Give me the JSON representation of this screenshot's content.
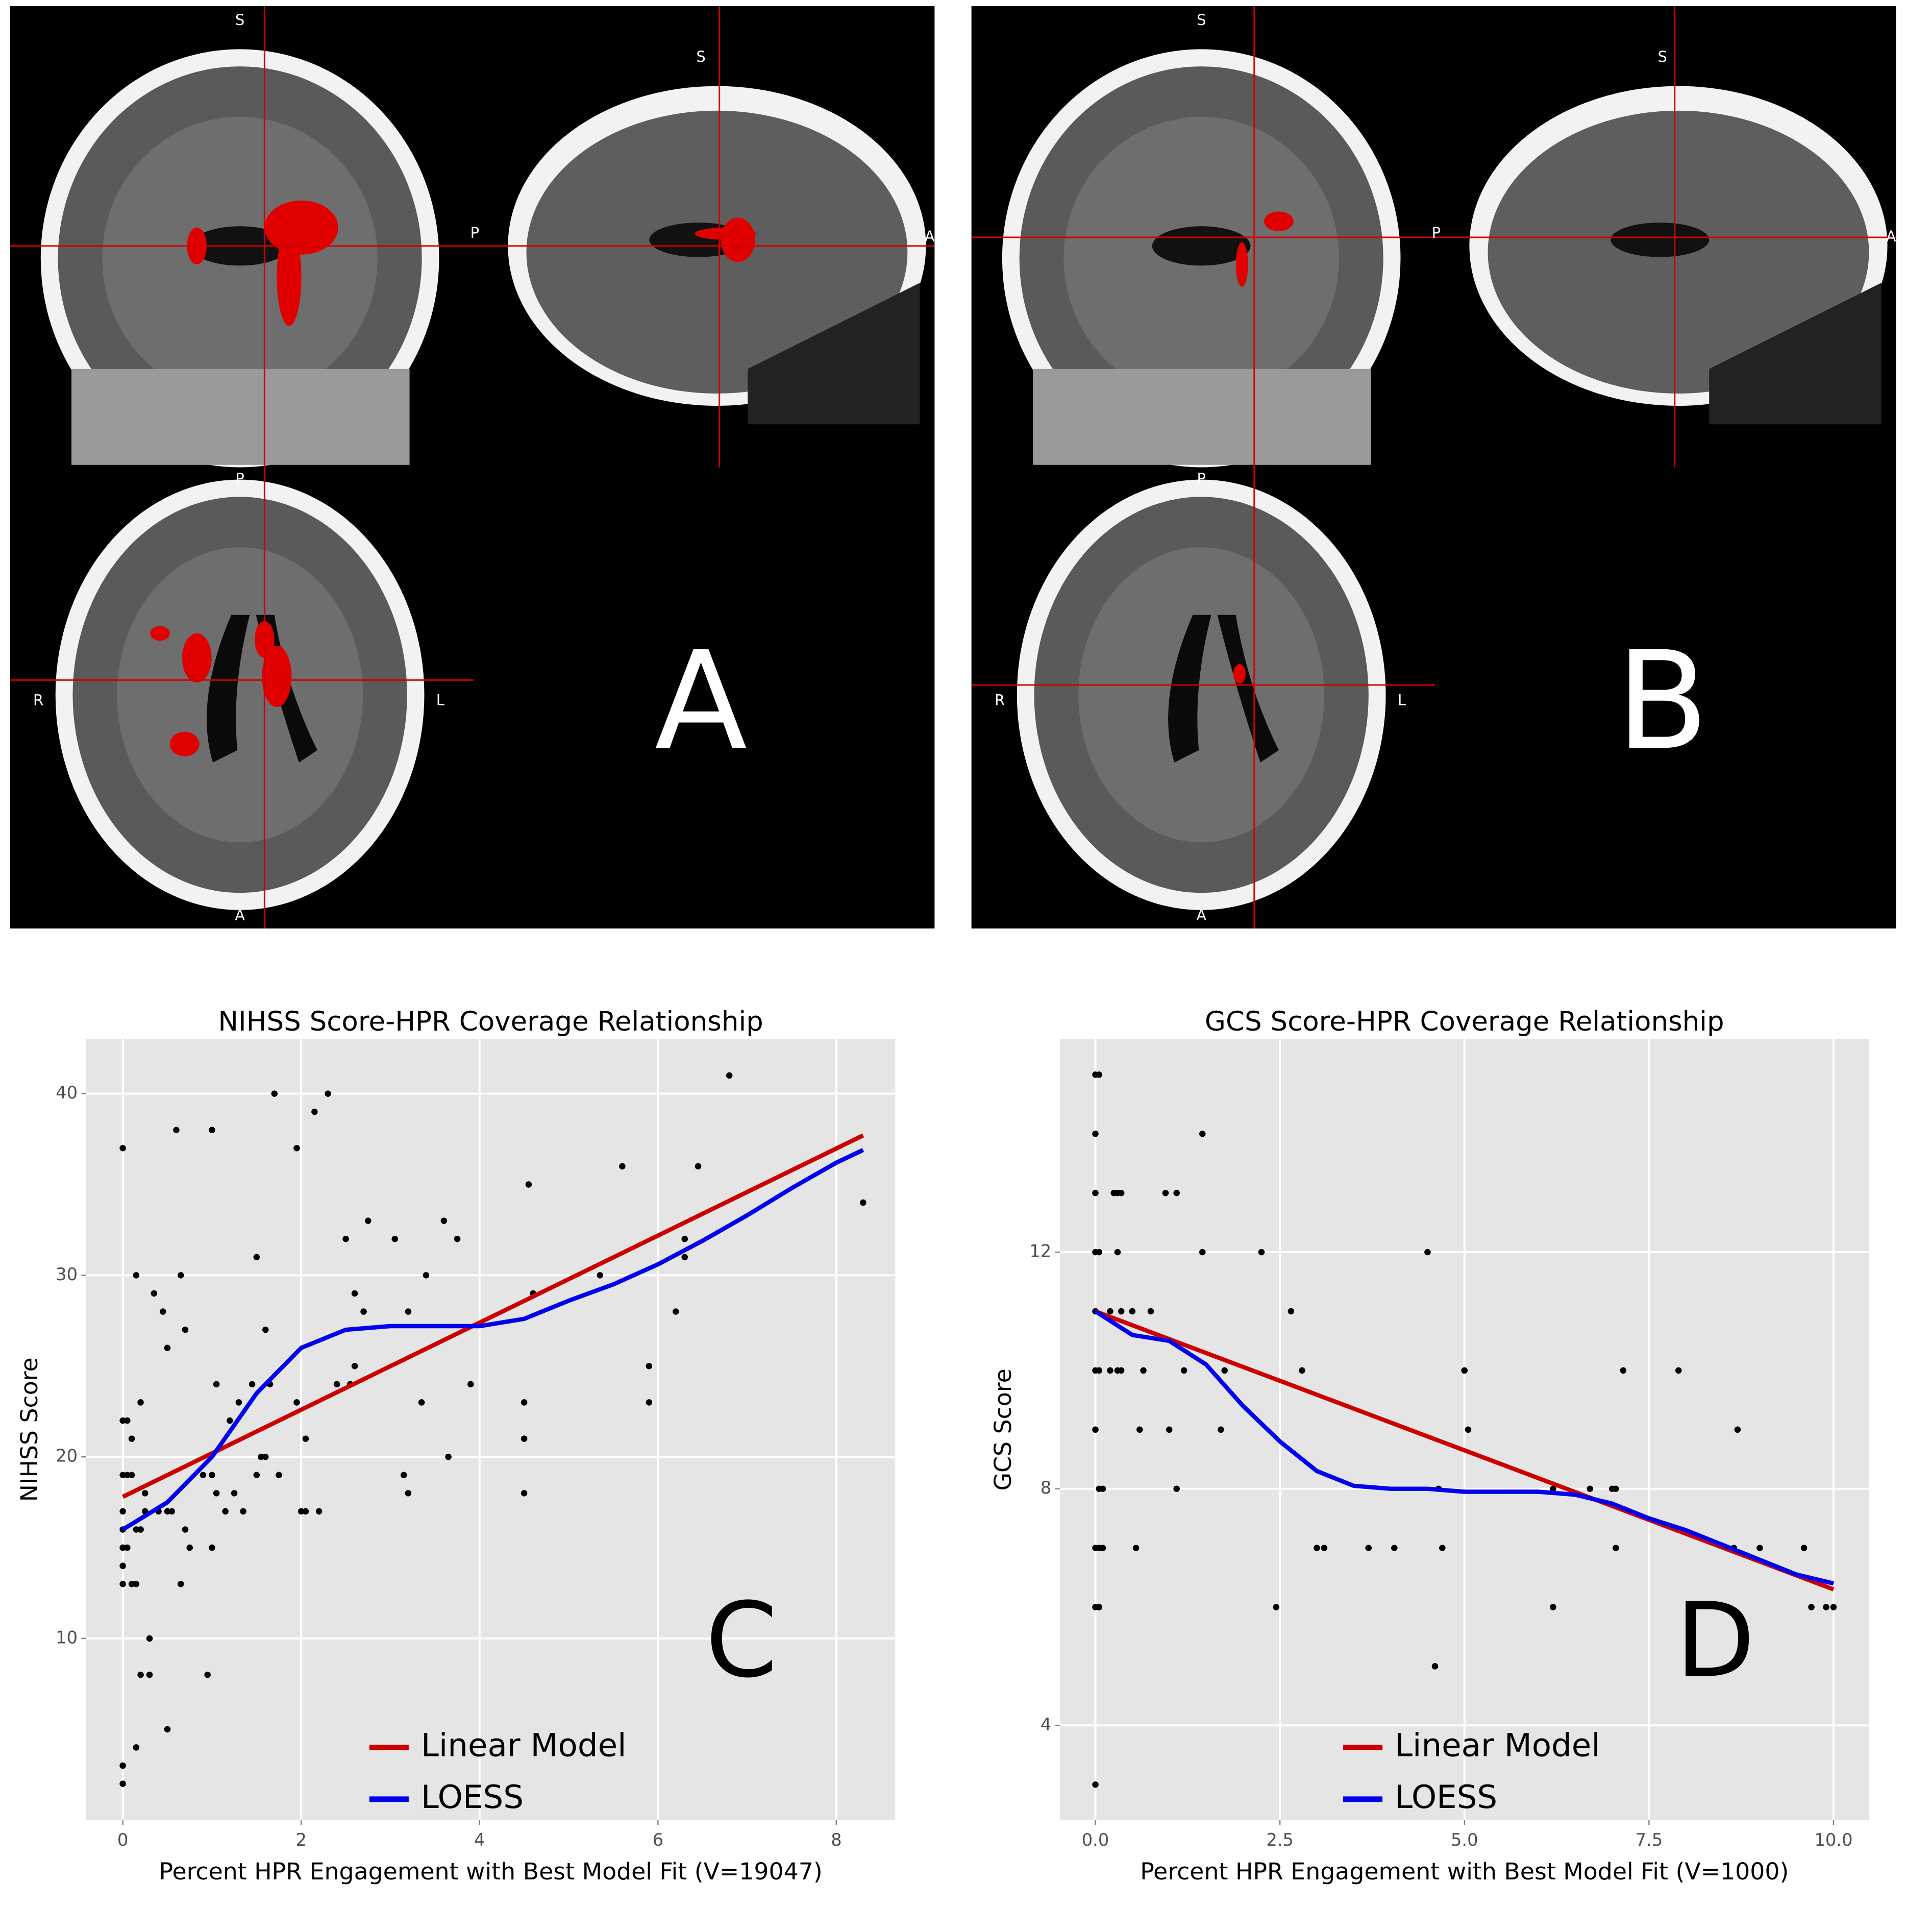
{
  "panels": [
    {
      "letter": "A",
      "orientation": {
        "coronal_top": "S",
        "sagittal_top": "S",
        "sagittal_left": "P",
        "sagittal_right": "A",
        "axial_top": "P",
        "axial_left": "R",
        "axial_right": "L",
        "axial_bottom": "A"
      }
    },
    {
      "letter": "B",
      "orientation": {
        "coronal_top": "S",
        "sagittal_top": "S",
        "sagittal_left": "P",
        "sagittal_right": "A",
        "axial_top": "P",
        "axial_left": "R",
        "axial_right": "L",
        "axial_bottom": "A"
      }
    }
  ],
  "chart_data": [
    {
      "type": "scatter",
      "title": "NIHSS Score-HPR Coverage Relationship",
      "x_label": "Percent HPR Engagement with Best Model Fit (V=19047)",
      "y_label": "NIHSS Score",
      "annotation": "C",
      "xlim": [
        -0.41,
        8.66
      ],
      "ylim": [
        0,
        43
      ],
      "xticks": [
        0,
        2,
        4,
        6,
        8
      ],
      "yticks": [
        10,
        20,
        30,
        40
      ],
      "grid": true,
      "legend_position": "bottom",
      "point_color": "#000000",
      "x": [
        0,
        0,
        0.05,
        0,
        0.05,
        0.1,
        0.1,
        0,
        0,
        0,
        0,
        0.05,
        0,
        0.1,
        0,
        0,
        0.15,
        0.2,
        0.15,
        0.2,
        0.25,
        0.25,
        0.2,
        0.15,
        0.2,
        0.3,
        0.3,
        0.15,
        0.35,
        0.4,
        0.45,
        0.5,
        0.5,
        0.55,
        0.6,
        0.65,
        0.7,
        0.7,
        0.75,
        0.65,
        0.5,
        0.95,
        1.0,
        0.9,
        1.0,
        1.05,
        1.0,
        1.05,
        1.15,
        1.2,
        1.25,
        1.3,
        1.35,
        1.45,
        1.5,
        1.5,
        1.55,
        1.6,
        1.6,
        1.65,
        1.7,
        1.75,
        1.95,
        1.95,
        2.0,
        2.05,
        2.05,
        2.15,
        2.2,
        2.3,
        2.4,
        2.5,
        2.55,
        2.6,
        2.6,
        2.7,
        2.75,
        3.05,
        3.15,
        3.2,
        3.2,
        3.35,
        3.4,
        3.6,
        3.65,
        3.75,
        3.9,
        4.5,
        4.5,
        4.5,
        4.55,
        4.6,
        5.35,
        5.6,
        5.9,
        5.9,
        6.2,
        6.3,
        6.3,
        6.45,
        6.8,
        8.3
      ],
      "values": [
        37,
        22,
        22,
        19,
        19,
        19,
        21,
        17,
        16,
        15,
        14,
        15,
        13,
        13,
        3,
        2,
        16,
        16,
        30,
        23,
        18,
        17,
        16,
        13,
        8,
        8,
        10,
        4,
        29,
        17,
        28,
        26,
        17,
        17,
        38,
        30,
        27,
        16,
        15,
        13,
        5,
        8,
        15,
        19,
        19,
        24,
        38,
        18,
        17,
        22,
        18,
        23,
        17,
        24,
        31,
        19,
        20,
        20,
        27,
        24,
        40,
        19,
        37,
        23,
        17,
        21,
        17,
        39,
        17,
        40,
        24,
        32,
        24,
        25,
        29,
        28,
        33,
        32,
        19,
        28,
        18,
        23,
        30,
        33,
        20,
        32,
        24,
        23,
        21,
        18,
        35,
        29,
        30,
        36,
        25,
        23,
        28,
        32,
        31,
        36,
        41,
        34
      ],
      "lines": [
        {
          "name": "Linear Model",
          "color": "#cc0000",
          "x": [
            0,
            8.3
          ],
          "values": [
            17.8,
            37.7
          ]
        },
        {
          "name": "LOESS",
          "color": "#0000ee",
          "x": [
            0,
            0.5,
            1,
            1.5,
            2,
            2.5,
            3,
            3.5,
            4,
            4.5,
            5,
            5.5,
            6,
            6.5,
            7,
            7.5,
            8,
            8.3
          ],
          "values": [
            16,
            17.5,
            20,
            23.5,
            26,
            27,
            27.2,
            27.2,
            27.2,
            27.6,
            28.6,
            29.5,
            30.6,
            31.9,
            33.3,
            34.8,
            36.2,
            36.9
          ]
        }
      ]
    },
    {
      "type": "scatter",
      "title": "GCS Score-HPR Coverage Relationship",
      "x_label": "Percent HPR Engagement with Best Model Fit (V=1000)",
      "y_label": "GCS Score",
      "annotation": "D",
      "xlim": [
        -0.48,
        10.48
      ],
      "ylim": [
        2.4,
        15.6
      ],
      "xticks": [
        {
          "value": 0,
          "label": "0.0"
        },
        {
          "value": 2.5,
          "label": "2.5"
        },
        {
          "value": 5,
          "label": "5.0"
        },
        {
          "value": 7.5,
          "label": "7.5"
        },
        {
          "value": 10,
          "label": "10.0"
        }
      ],
      "yticks": [
        4,
        8,
        12
      ],
      "grid": true,
      "legend_position": "bottom",
      "point_color": "#000000",
      "x": [
        0,
        0.05,
        0,
        0,
        0,
        0.05,
        0,
        0,
        0.05,
        0,
        0.05,
        0.1,
        0,
        0.05,
        0.1,
        0,
        0.05,
        0,
        0.2,
        0.25,
        0.3,
        0.35,
        0.3,
        0.2,
        0.35,
        0.3,
        0.35,
        0.5,
        0.6,
        0.55,
        0.65,
        0.75,
        0.95,
        1.0,
        1.1,
        1.1,
        1.2,
        1.45,
        1.45,
        1.7,
        1.75,
        2.25,
        2.45,
        2.65,
        2.8,
        3.0,
        3.1,
        3.7,
        4.05,
        4.5,
        4.6,
        4.65,
        4.7,
        5.0,
        5.05,
        6.2,
        6.2,
        6.7,
        7.0,
        7.05,
        7.05,
        7.15,
        7.9,
        8.7,
        8.65,
        9.0,
        9.6,
        9.7,
        9.9,
        10.0
      ],
      "values": [
        15,
        15,
        14,
        13,
        12,
        12,
        11,
        10,
        10,
        9,
        8,
        8,
        7,
        7,
        7,
        6,
        6,
        3,
        10,
        13,
        13,
        13,
        12,
        11,
        11,
        10,
        10,
        11,
        9,
        7,
        10,
        11,
        13,
        9,
        13,
        8,
        10,
        14,
        12,
        9,
        10,
        12,
        6,
        11,
        10,
        7,
        7,
        7,
        7,
        12,
        5,
        8,
        7,
        10,
        9,
        6,
        8,
        8,
        8,
        8,
        7,
        10,
        10,
        9,
        7,
        7,
        7,
        6,
        6,
        6
      ],
      "lines": [
        {
          "name": "Linear Model",
          "color": "#cc0000",
          "x": [
            0,
            10
          ],
          "values": [
            11,
            6.3
          ]
        },
        {
          "name": "LOESS",
          "color": "#0000ee",
          "x": [
            0,
            0.5,
            1,
            1.5,
            2,
            2.5,
            3,
            3.5,
            4,
            4.5,
            5,
            5.5,
            6,
            6.5,
            7,
            7.5,
            8,
            8.5,
            9,
            9.5,
            10
          ],
          "values": [
            11,
            10.6,
            10.5,
            10.1,
            9.4,
            8.8,
            8.3,
            8.05,
            8,
            8,
            7.95,
            7.95,
            7.95,
            7.9,
            7.75,
            7.5,
            7.3,
            7.05,
            6.8,
            6.55,
            6.4
          ]
        }
      ]
    }
  ]
}
